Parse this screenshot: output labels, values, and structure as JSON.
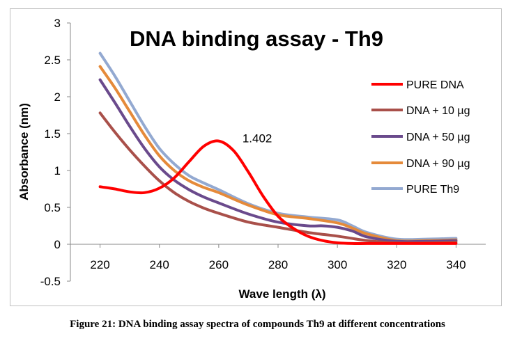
{
  "chart_data": {
    "type": "line",
    "title": "DNA binding assay - Th9",
    "xlabel": "Wave length (λ)",
    "ylabel": "Absorbance (nm)",
    "xlim": [
      210,
      350
    ],
    "ylim": [
      -0.5,
      3
    ],
    "x_ticks": [
      "220",
      "240",
      "260",
      "280",
      "300",
      "320",
      "340"
    ],
    "y_ticks": [
      "-0.5",
      "0",
      "0.5",
      "1",
      "1.5",
      "2",
      "2.5",
      "3"
    ],
    "grid": false,
    "legend_position": "right",
    "annotation": {
      "text": "1.402",
      "x": 260,
      "y": 1.402
    },
    "series": [
      {
        "name": "PURE DNA",
        "color": "#ff0000",
        "x": [
          220,
          225,
          230,
          235,
          240,
          245,
          250,
          255,
          260,
          265,
          270,
          275,
          280,
          285,
          290,
          295,
          300,
          305,
          310,
          320,
          330,
          340
        ],
        "y": [
          0.78,
          0.75,
          0.71,
          0.7,
          0.76,
          0.9,
          1.12,
          1.33,
          1.4,
          1.27,
          0.98,
          0.65,
          0.38,
          0.22,
          0.11,
          0.05,
          0.02,
          0.01,
          0.01,
          0.01,
          0.01,
          0.01
        ]
      },
      {
        "name": "DNA + 10 µg",
        "color": "#a9504a",
        "x": [
          220,
          225,
          230,
          235,
          240,
          245,
          250,
          255,
          260,
          270,
          280,
          290,
          300,
          310,
          320,
          330,
          340
        ],
        "y": [
          1.78,
          1.52,
          1.28,
          1.06,
          0.86,
          0.7,
          0.58,
          0.49,
          0.42,
          0.3,
          0.23,
          0.16,
          0.11,
          0.05,
          0.02,
          0.02,
          0.03
        ]
      },
      {
        "name": "DNA + 50 µg",
        "color": "#6a4a8c",
        "x": [
          220,
          225,
          230,
          235,
          240,
          245,
          250,
          255,
          260,
          270,
          280,
          290,
          295,
          300,
          305,
          310,
          320,
          330,
          340
        ],
        "y": [
          2.23,
          1.92,
          1.6,
          1.3,
          1.05,
          0.87,
          0.74,
          0.64,
          0.56,
          0.41,
          0.3,
          0.25,
          0.25,
          0.23,
          0.18,
          0.1,
          0.04,
          0.04,
          0.05
        ]
      },
      {
        "name": "DNA + 90 µg",
        "color": "#e58a3a",
        "x": [
          220,
          225,
          230,
          235,
          240,
          245,
          250,
          255,
          260,
          270,
          280,
          290,
          300,
          305,
          310,
          320,
          330,
          340
        ],
        "y": [
          2.41,
          2.12,
          1.8,
          1.48,
          1.2,
          1.0,
          0.86,
          0.77,
          0.7,
          0.53,
          0.4,
          0.35,
          0.29,
          0.22,
          0.14,
          0.05,
          0.05,
          0.06
        ]
      },
      {
        "name": "PURE Th9",
        "color": "#93a9d1",
        "x": [
          220,
          225,
          230,
          235,
          240,
          245,
          250,
          255,
          260,
          270,
          280,
          290,
          300,
          305,
          310,
          320,
          330,
          340
        ],
        "y": [
          2.59,
          2.28,
          1.94,
          1.6,
          1.3,
          1.09,
          0.93,
          0.83,
          0.74,
          0.55,
          0.42,
          0.37,
          0.33,
          0.25,
          0.16,
          0.07,
          0.07,
          0.08
        ]
      }
    ]
  },
  "caption": "Figure 21: DNA binding assay spectra of compounds Th9 at different concentrations"
}
